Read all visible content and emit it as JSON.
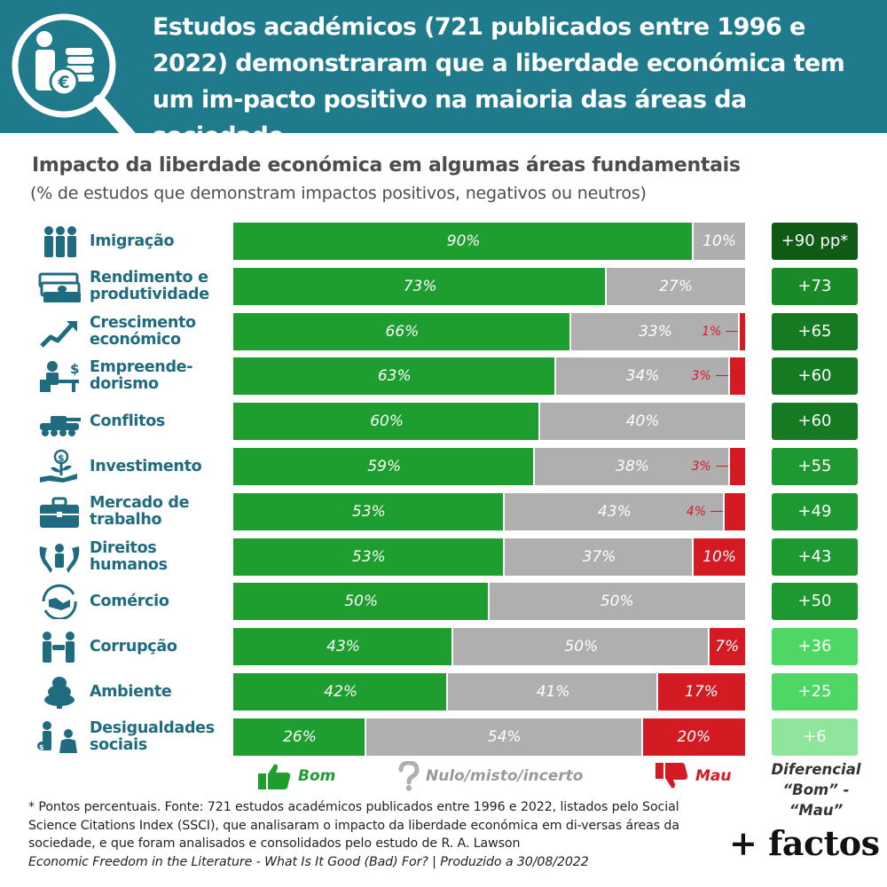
{
  "header": {
    "title": "Estudos académicos (721 publicados entre 1996 e 2022) demonstraram que a liberdade económica tem um im-pacto positivo na maioria das áreas da sociedade",
    "icon": "magnifier-euro-coins-icon",
    "background_color": "#1f7a8c"
  },
  "chart_data": {
    "type": "bar",
    "orientation": "horizontal",
    "stacked": true,
    "title": "Impacto da liberdade económica em algumas áreas fundamentais",
    "subtitle": "(% de estudos que demonstram impactos positivos, negativos ou neutros)",
    "categories": [
      "Imigração",
      "Rendimento e\nprodutividade",
      "Crescimento\neconómico",
      "Empreende-\ndorismo",
      "Conflitos",
      "Investimento",
      "Mercado de\ntrabalho",
      "Direitos\nhumanos",
      "Comércio",
      "Corrupção",
      "Ambiente",
      "Desigualdades\nsociais"
    ],
    "series": [
      {
        "name": "Bom",
        "color": "#1d9e2e",
        "values": [
          90,
          73,
          66,
          63,
          60,
          59,
          53,
          53,
          50,
          43,
          42,
          26
        ]
      },
      {
        "name": "Nulo/misto/incerto",
        "color": "#afafaf",
        "values": [
          10,
          27,
          33,
          34,
          40,
          38,
          43,
          37,
          50,
          50,
          41,
          54
        ]
      },
      {
        "name": "Mau",
        "color": "#d41a22",
        "values": [
          0,
          0,
          1,
          3,
          0,
          3,
          4,
          10,
          0,
          7,
          17,
          20
        ]
      }
    ],
    "differential": {
      "label": "Diferencial",
      "sublabel": "“Bom” - “Mau”",
      "values": [
        "+90 pp*",
        "+73",
        "+65",
        "+60",
        "+60",
        "+55",
        "+49",
        "+43",
        "+50",
        "+36",
        "+25",
        "+6"
      ],
      "colors": [
        "#0f5a14",
        "#1a8a28",
        "#167a23",
        "#167a23",
        "#167a23",
        "#1e9830",
        "#1e9830",
        "#1e9830",
        "#1e9830",
        "#4fd765",
        "#4fd765",
        "#8ee59b"
      ]
    },
    "icons": [
      "people-group-icon",
      "banknotes-icon",
      "growth-arrow-icon",
      "entrepreneur-desk-icon",
      "tank-icon",
      "investment-plant-icon",
      "briefcase-icon",
      "human-rights-hands-icon",
      "trade-handshake-icon",
      "corruption-people-icon",
      "tree-icon",
      "inequality-people-icon"
    ],
    "xlim": [
      0,
      100
    ],
    "legend_position": "bottom"
  },
  "legend": {
    "good": "Bom",
    "neutral": "Nulo/misto/incerto",
    "bad": "Mau"
  },
  "footer": {
    "note": "* Pontos percentuais. Fonte: 721 estudos académicos publicados entre 1996 e 2022, listados pelo Social Science Citations Index (SSCI), que analisaram o impacto da liberdade económica em di-versas áreas da sociedade, e que foram analisados e consolidados pelo estudo de R. A. Lawson",
    "source_title": "Economic Freedom in the Literature - What Is It Good (Bad) For? | Produzido a 30/08/2022",
    "brand": "+ factos"
  }
}
